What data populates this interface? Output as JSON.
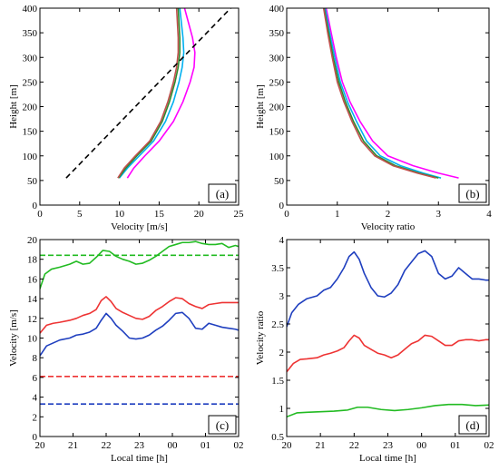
{
  "chart_data": [
    {
      "id": "a",
      "type": "line",
      "panel_label": "(a)",
      "xlabel": "Velocity [m/s]",
      "ylabel": "Height [m]",
      "xlim": [
        0,
        25
      ],
      "ylim": [
        0,
        400
      ],
      "xticks": [
        0,
        5,
        10,
        15,
        20,
        25
      ],
      "yticks": [
        0,
        50,
        100,
        150,
        200,
        250,
        300,
        350,
        400
      ],
      "grid": false,
      "series": [
        {
          "color": "#ff00ff",
          "x": [
            11.0,
            11.8,
            13.2,
            15.0,
            16.8,
            18.0,
            18.9,
            19.4,
            19.5,
            19.2,
            18.7,
            18.2
          ],
          "y": [
            55,
            75,
            100,
            130,
            170,
            210,
            250,
            280,
            310,
            340,
            370,
            400
          ]
        },
        {
          "color": "#00b0f0",
          "x": [
            10.0,
            11.0,
            12.5,
            14.3,
            15.8,
            16.8,
            17.5,
            17.9,
            18.1,
            18.0,
            17.8,
            17.6
          ],
          "y": [
            55,
            75,
            100,
            130,
            170,
            210,
            250,
            280,
            310,
            340,
            370,
            400
          ]
        },
        {
          "color": "#2e8b2e",
          "x": [
            9.9,
            10.8,
            12.2,
            14.0,
            15.4,
            16.3,
            17.0,
            17.4,
            17.6,
            17.6,
            17.5,
            17.4
          ],
          "y": [
            55,
            75,
            100,
            130,
            170,
            210,
            250,
            280,
            310,
            340,
            370,
            400
          ]
        },
        {
          "color": "#c0504d",
          "x": [
            9.8,
            10.6,
            12.0,
            13.8,
            15.2,
            16.1,
            16.8,
            17.2,
            17.4,
            17.4,
            17.3,
            17.2
          ],
          "y": [
            55,
            75,
            100,
            130,
            170,
            210,
            250,
            280,
            310,
            340,
            370,
            400
          ]
        },
        {
          "color": "#000000",
          "dash": "6,4",
          "x": [
            3.3,
            24.0
          ],
          "y": [
            55,
            400
          ]
        }
      ]
    },
    {
      "id": "b",
      "type": "line",
      "panel_label": "(b)",
      "xlabel": "Velocity ratio",
      "ylabel": "Height [m]",
      "xlim": [
        0,
        4
      ],
      "ylim": [
        0,
        400
      ],
      "xticks": [
        0,
        1,
        2,
        3,
        4
      ],
      "yticks": [
        0,
        50,
        100,
        150,
        200,
        250,
        300,
        350,
        400
      ],
      "grid": false,
      "series": [
        {
          "color": "#ff00ff",
          "x": [
            3.4,
            3.0,
            2.5,
            2.0,
            1.7,
            1.45,
            1.25,
            1.1,
            0.98,
            0.88,
            0.78
          ],
          "y": [
            55,
            65,
            80,
            100,
            130,
            170,
            210,
            250,
            300,
            350,
            400
          ]
        },
        {
          "color": "#00b0f0",
          "x": [
            3.05,
            2.7,
            2.25,
            1.85,
            1.58,
            1.38,
            1.2,
            1.06,
            0.95,
            0.85,
            0.76
          ],
          "y": [
            55,
            65,
            80,
            100,
            130,
            170,
            210,
            250,
            300,
            350,
            400
          ]
        },
        {
          "color": "#2e8b2e",
          "x": [
            3.0,
            2.62,
            2.15,
            1.78,
            1.52,
            1.32,
            1.16,
            1.03,
            0.92,
            0.83,
            0.74
          ],
          "y": [
            55,
            65,
            80,
            100,
            130,
            170,
            210,
            250,
            300,
            350,
            400
          ]
        },
        {
          "color": "#c0504d",
          "x": [
            2.95,
            2.58,
            2.1,
            1.74,
            1.48,
            1.29,
            1.13,
            1.0,
            0.9,
            0.81,
            0.73
          ],
          "y": [
            55,
            65,
            80,
            100,
            130,
            170,
            210,
            250,
            300,
            350,
            400
          ]
        }
      ]
    },
    {
      "id": "c",
      "type": "line",
      "panel_label": "(c)",
      "xlabel": "Local time [h]",
      "ylabel": "Velocity [m/s]",
      "xlim": [
        0,
        6
      ],
      "ylim": [
        0,
        20
      ],
      "xticks": [
        0,
        1,
        2,
        3,
        4,
        5,
        6
      ],
      "xticklabels": [
        "20",
        "21",
        "22",
        "23",
        "00",
        "01",
        "02"
      ],
      "yticks": [
        0,
        2,
        4,
        6,
        8,
        10,
        12,
        14,
        16,
        18,
        20
      ],
      "grid": false,
      "series": [
        {
          "color": "#22bb22",
          "x": [
            0,
            0.15,
            0.35,
            0.6,
            0.9,
            1.1,
            1.3,
            1.5,
            1.7,
            1.9,
            2.1,
            2.3,
            2.5,
            2.7,
            2.9,
            3.1,
            3.3,
            3.5,
            3.7,
            3.9,
            4.1,
            4.3,
            4.5,
            4.7,
            4.9,
            5.1,
            5.3,
            5.5,
            5.7,
            5.9,
            6.0
          ],
          "y": [
            15.0,
            16.5,
            17.0,
            17.2,
            17.5,
            17.8,
            17.5,
            17.6,
            18.2,
            18.9,
            18.8,
            18.3,
            18.0,
            17.8,
            17.5,
            17.6,
            17.9,
            18.3,
            18.8,
            19.3,
            19.5,
            19.7,
            19.7,
            19.8,
            19.6,
            19.5,
            19.5,
            19.6,
            19.2,
            19.4,
            19.3
          ]
        },
        {
          "color": "#22bb22",
          "dash": "6,3",
          "x": [
            0,
            6
          ],
          "y": [
            18.4,
            18.4
          ]
        },
        {
          "color": "#ee3333",
          "x": [
            0,
            0.2,
            0.4,
            0.6,
            0.9,
            1.1,
            1.3,
            1.5,
            1.7,
            1.85,
            2.0,
            2.15,
            2.3,
            2.5,
            2.7,
            2.9,
            3.1,
            3.3,
            3.5,
            3.7,
            3.9,
            4.1,
            4.3,
            4.5,
            4.7,
            4.9,
            5.1,
            5.3,
            5.5,
            5.7,
            5.9,
            6.0
          ],
          "y": [
            10.5,
            11.3,
            11.5,
            11.6,
            11.8,
            12.0,
            12.3,
            12.5,
            12.9,
            13.8,
            14.2,
            13.7,
            13.0,
            12.6,
            12.3,
            12.0,
            11.9,
            12.2,
            12.8,
            13.2,
            13.7,
            14.1,
            14.0,
            13.5,
            13.2,
            13.0,
            13.4,
            13.5,
            13.6,
            13.6,
            13.6,
            13.6
          ]
        },
        {
          "color": "#ee3333",
          "dash": "6,3",
          "x": [
            0,
            6
          ],
          "y": [
            6.1,
            6.1
          ]
        },
        {
          "color": "#1f3fbf",
          "x": [
            0,
            0.2,
            0.4,
            0.6,
            0.9,
            1.1,
            1.3,
            1.5,
            1.7,
            1.85,
            2.0,
            2.15,
            2.3,
            2.5,
            2.7,
            2.9,
            3.1,
            3.3,
            3.5,
            3.7,
            3.9,
            4.1,
            4.3,
            4.5,
            4.7,
            4.9,
            5.1,
            5.3,
            5.5,
            5.7,
            5.9,
            6.0
          ],
          "y": [
            8.2,
            9.2,
            9.5,
            9.8,
            10.0,
            10.3,
            10.4,
            10.6,
            11.0,
            11.8,
            12.5,
            12.0,
            11.3,
            10.7,
            10.0,
            9.9,
            10.0,
            10.3,
            10.8,
            11.2,
            11.8,
            12.5,
            12.6,
            12.0,
            11.0,
            10.9,
            11.5,
            11.3,
            11.1,
            11.0,
            10.9,
            10.8
          ]
        },
        {
          "color": "#1f3fbf",
          "dash": "6,3",
          "x": [
            0,
            6
          ],
          "y": [
            3.3,
            3.3
          ]
        }
      ]
    },
    {
      "id": "d",
      "type": "line",
      "panel_label": "(d)",
      "xlabel": "Local time [h]",
      "ylabel": "Velocity ratio",
      "xlim": [
        0,
        6
      ],
      "ylim": [
        0.5,
        4
      ],
      "xticks": [
        0,
        1,
        2,
        3,
        4,
        5,
        6
      ],
      "xticklabels": [
        "20",
        "21",
        "22",
        "23",
        "00",
        "01",
        "02"
      ],
      "yticks": [
        0.5,
        1,
        1.5,
        2,
        2.5,
        3,
        3.5,
        4
      ],
      "grid": false,
      "series": [
        {
          "color": "#1f3fbf",
          "x": [
            0,
            0.15,
            0.35,
            0.6,
            0.9,
            1.1,
            1.3,
            1.5,
            1.7,
            1.85,
            2.0,
            2.15,
            2.3,
            2.5,
            2.7,
            2.9,
            3.1,
            3.3,
            3.5,
            3.7,
            3.9,
            4.1,
            4.3,
            4.5,
            4.7,
            4.9,
            5.1,
            5.3,
            5.5,
            5.7,
            5.9,
            6.0
          ],
          "y": [
            2.45,
            2.7,
            2.85,
            2.95,
            3.0,
            3.1,
            3.15,
            3.3,
            3.5,
            3.7,
            3.78,
            3.65,
            3.4,
            3.15,
            3.0,
            2.98,
            3.05,
            3.2,
            3.45,
            3.6,
            3.75,
            3.8,
            3.7,
            3.4,
            3.3,
            3.35,
            3.5,
            3.4,
            3.3,
            3.3,
            3.28,
            3.28
          ]
        },
        {
          "color": "#ee3333",
          "x": [
            0,
            0.2,
            0.4,
            0.6,
            0.9,
            1.1,
            1.3,
            1.5,
            1.7,
            1.85,
            2.0,
            2.15,
            2.3,
            2.5,
            2.7,
            2.9,
            3.1,
            3.3,
            3.5,
            3.7,
            3.9,
            4.1,
            4.3,
            4.5,
            4.7,
            4.9,
            5.1,
            5.3,
            5.5,
            5.7,
            5.9,
            6.0
          ],
          "y": [
            1.65,
            1.8,
            1.87,
            1.88,
            1.9,
            1.95,
            1.98,
            2.02,
            2.08,
            2.2,
            2.3,
            2.25,
            2.12,
            2.05,
            1.98,
            1.95,
            1.9,
            1.95,
            2.05,
            2.15,
            2.2,
            2.3,
            2.28,
            2.2,
            2.12,
            2.12,
            2.2,
            2.22,
            2.22,
            2.2,
            2.22,
            2.22
          ]
        },
        {
          "color": "#22bb22",
          "x": [
            0,
            0.3,
            0.6,
            1.0,
            1.4,
            1.8,
            2.1,
            2.4,
            2.8,
            3.2,
            3.6,
            4.0,
            4.4,
            4.8,
            5.2,
            5.6,
            6.0
          ],
          "y": [
            0.85,
            0.92,
            0.93,
            0.94,
            0.95,
            0.97,
            1.02,
            1.02,
            0.98,
            0.96,
            0.98,
            1.01,
            1.05,
            1.07,
            1.07,
            1.05,
            1.06
          ]
        }
      ]
    }
  ]
}
